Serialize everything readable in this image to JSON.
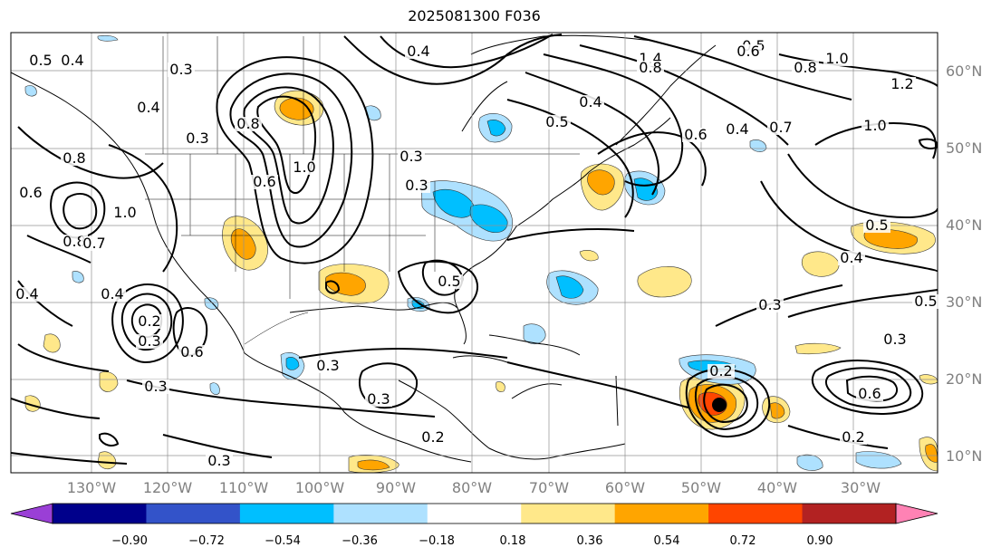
{
  "title": "2025081300 F036",
  "lon_labels": [
    "130°W",
    "120°W",
    "110°W",
    "100°W",
    "90°W",
    "80°W",
    "70°W",
    "60°W",
    "50°W",
    "40°W",
    "30°W"
  ],
  "lat_labels": [
    "60°N",
    "50°N",
    "40°N",
    "30°N",
    "20°N",
    "10°N"
  ],
  "colorbar": {
    "ticks": [
      "−0.90",
      "−0.72",
      "−0.54",
      "−0.36",
      "−0.18",
      "0.18",
      "0.36",
      "0.54",
      "0.72",
      "0.90"
    ],
    "colors": [
      "#9a3fd6",
      "#00008b",
      "#3353c9",
      "#00bfff",
      "#aee1ff",
      "#ffffff",
      "#ffe88a",
      "#ffa500",
      "#ff4500",
      "#b22222",
      "#ff82b4"
    ]
  },
  "contour_labels": [
    {
      "text": "0.5"
    },
    {
      "text": "0.4"
    },
    {
      "text": "0.3"
    },
    {
      "text": "0.4"
    },
    {
      "text": "1.4"
    },
    {
      "text": "0.8"
    },
    {
      "text": "0.5"
    },
    {
      "text": "0.6"
    },
    {
      "text": "0.8"
    },
    {
      "text": "1.0"
    },
    {
      "text": "1.2"
    },
    {
      "text": "0.4"
    },
    {
      "text": "0.3"
    },
    {
      "text": "0.8"
    },
    {
      "text": "1.0"
    },
    {
      "text": "0.6"
    },
    {
      "text": "0.5"
    },
    {
      "text": "0.4"
    },
    {
      "text": "0.6"
    },
    {
      "text": "0.4"
    },
    {
      "text": "0.7"
    },
    {
      "text": "1.0"
    },
    {
      "text": "0.8"
    },
    {
      "text": "0.6"
    },
    {
      "text": "1.0"
    },
    {
      "text": "0.8"
    },
    {
      "text": "0.7"
    },
    {
      "text": "0.4"
    },
    {
      "text": "0.4"
    },
    {
      "text": "0.2"
    },
    {
      "text": "0.3"
    },
    {
      "text": "0.6"
    },
    {
      "text": "0.3"
    },
    {
      "text": "0.3"
    },
    {
      "text": "0.3"
    },
    {
      "text": "0.2"
    },
    {
      "text": "0.3"
    },
    {
      "text": "0.5"
    },
    {
      "text": "0.3"
    },
    {
      "text": "0.3"
    },
    {
      "text": "0.5"
    },
    {
      "text": "0.4"
    },
    {
      "text": "0.5"
    },
    {
      "text": "0.3"
    },
    {
      "text": "0.2"
    },
    {
      "text": "0.6"
    },
    {
      "text": "0.2"
    },
    {
      "text": "0.3"
    }
  ]
}
